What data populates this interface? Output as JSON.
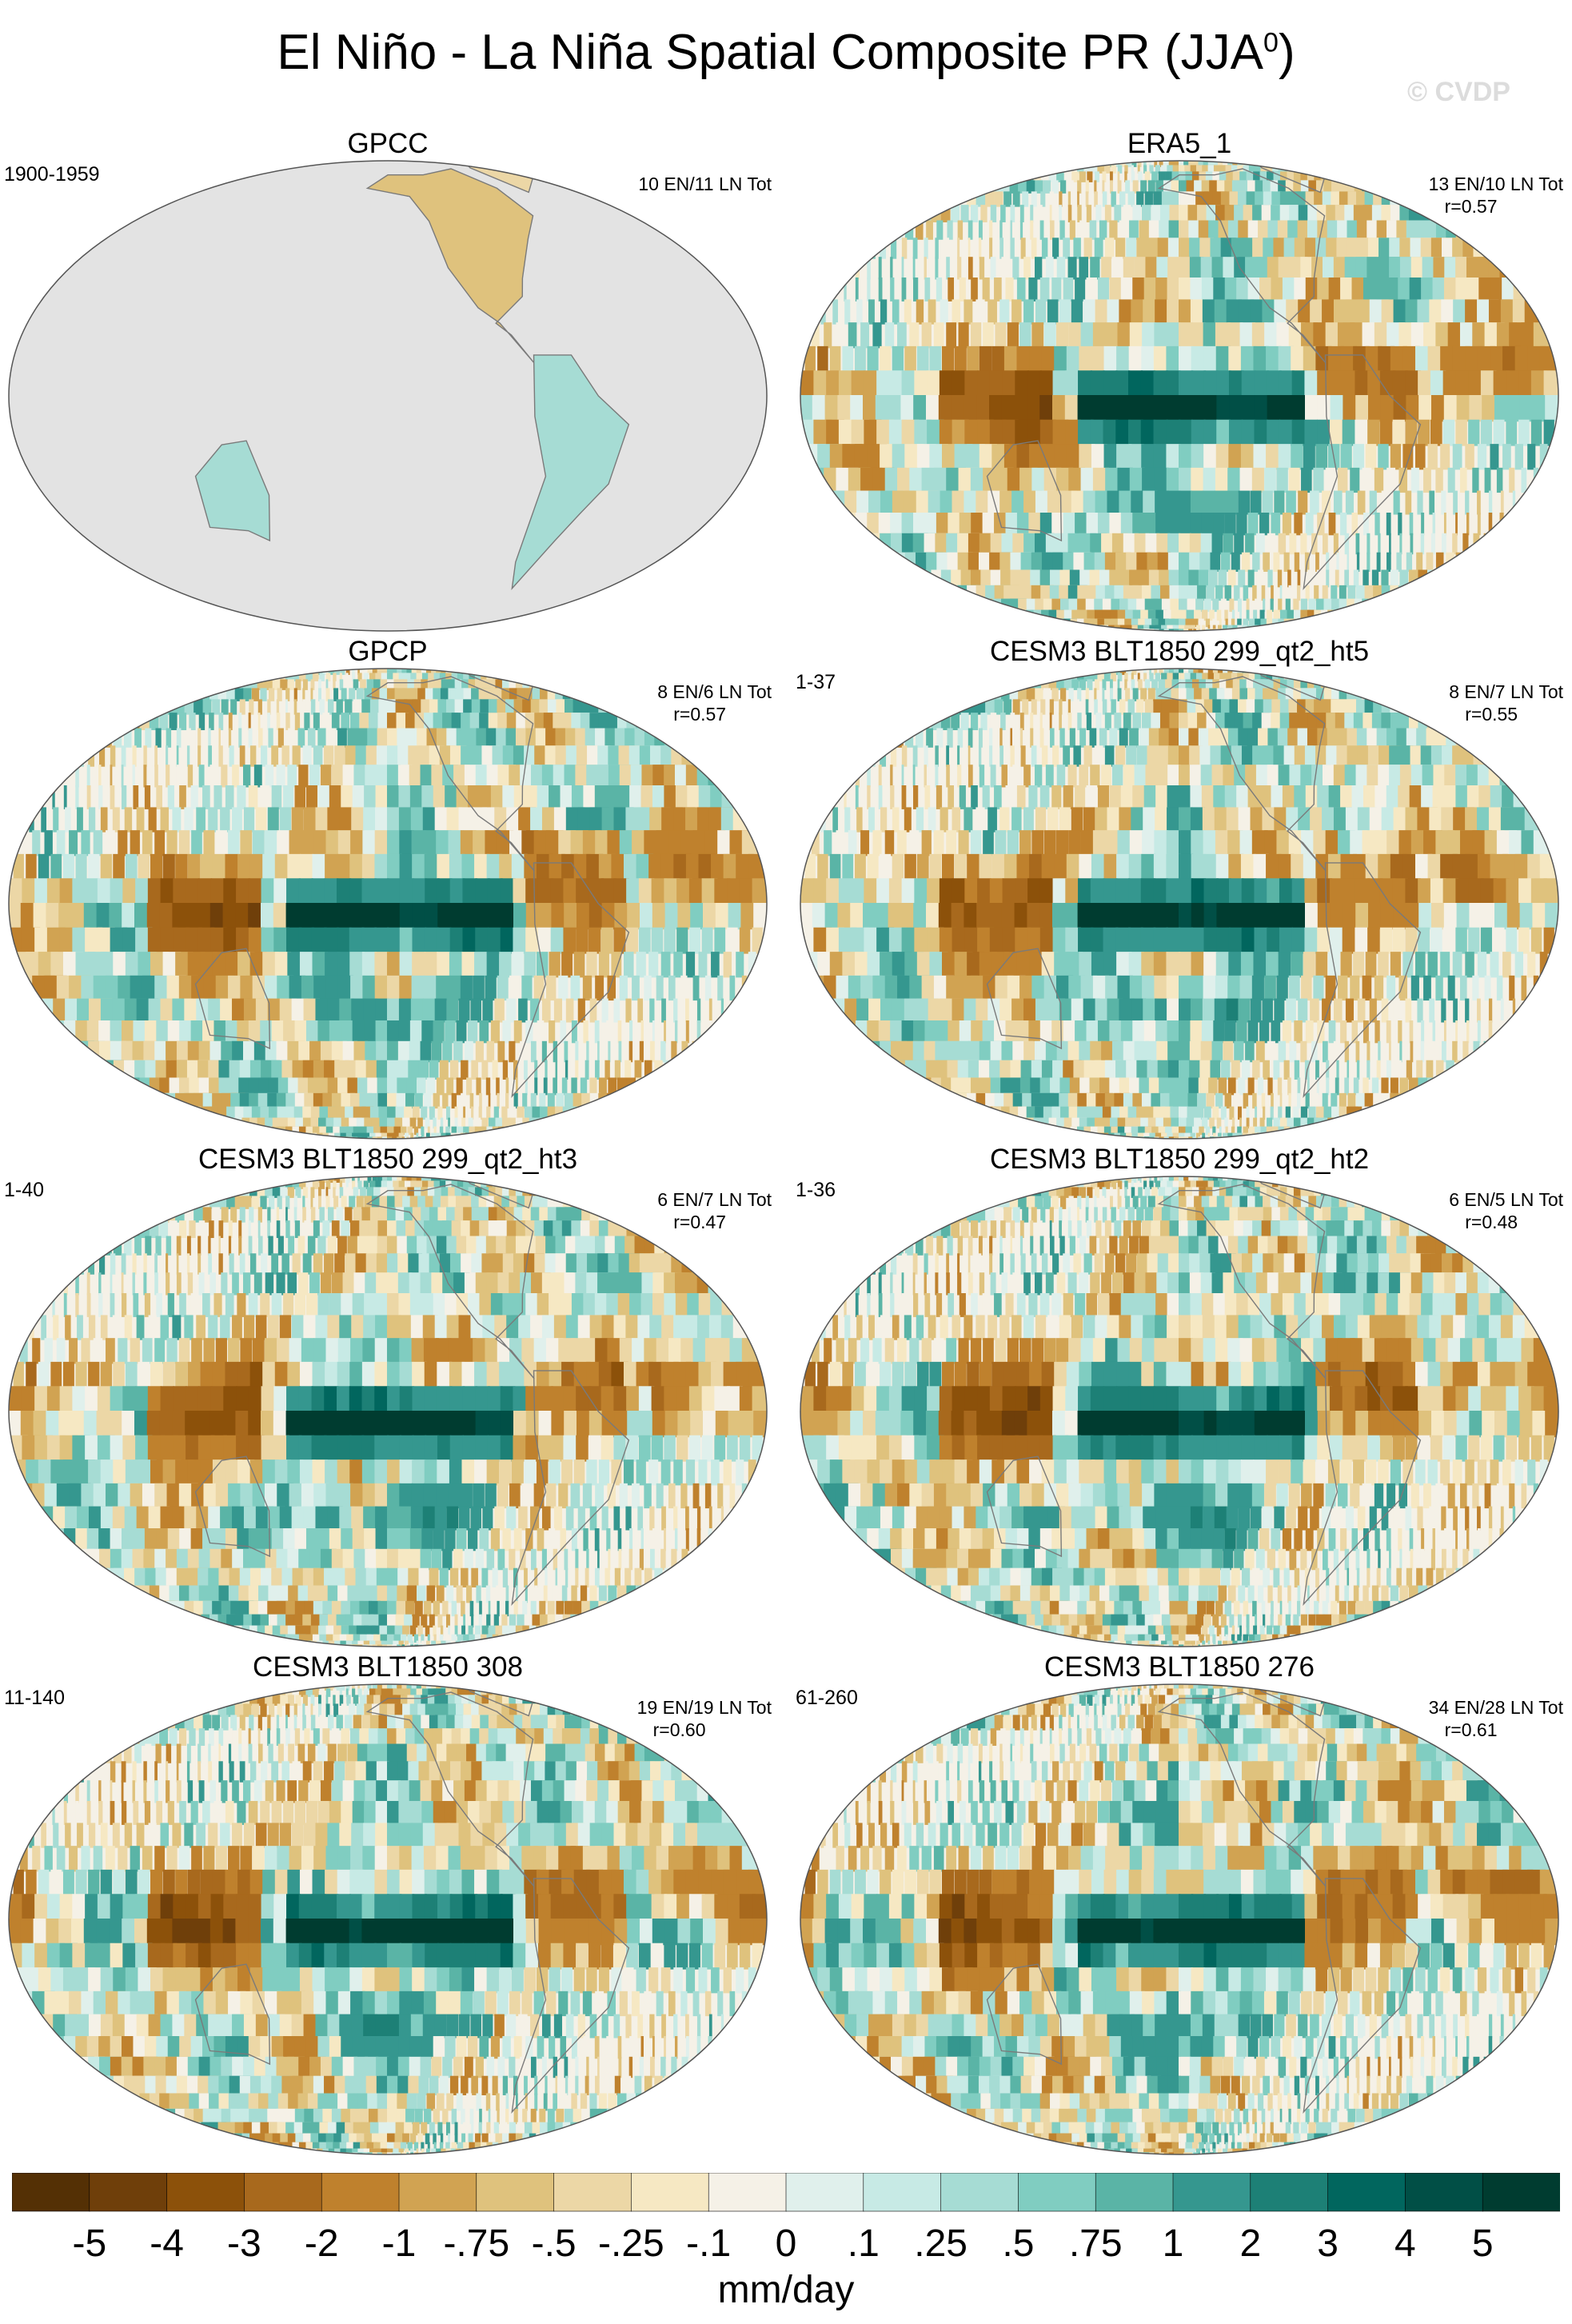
{
  "title": "El Niño - La Niña Spatial Composite PR (JJA",
  "title_sup": "0",
  "title_close": ")",
  "watermark": "© CVDP",
  "chart_data": {
    "type": "heatmap",
    "projection": "Robinson-style world map, Pacific centered",
    "units": "mm/day",
    "panels": [
      {
        "name": "GPCC",
        "years": "1900-1959",
        "counts": "10 EN/11 LN Tot",
        "r": "",
        "land_only": true
      },
      {
        "name": "ERA5_1",
        "years": "",
        "counts": "13 EN/10 LN Tot",
        "r": "r=0.57",
        "land_only": false
      },
      {
        "name": "GPCP",
        "years": "",
        "counts": "8 EN/6 LN Tot",
        "r": "r=0.57",
        "land_only": false
      },
      {
        "name": "CESM3 BLT1850 299_qt2_ht5",
        "years": "1-37",
        "counts": "8 EN/7 LN Tot",
        "r": "r=0.55",
        "land_only": false
      },
      {
        "name": "CESM3 BLT1850 299_qt2_ht3",
        "years": "1-40",
        "counts": "6 EN/7 LN Tot",
        "r": "r=0.47",
        "land_only": false
      },
      {
        "name": "CESM3 BLT1850 299_qt2_ht2",
        "years": "1-36",
        "counts": "6 EN/5 LN Tot",
        "r": "r=0.48",
        "land_only": false
      },
      {
        "name": "CESM3 BLT1850 308",
        "years": "11-140",
        "counts": "19 EN/19 LN Tot",
        "r": "r=0.60",
        "land_only": false
      },
      {
        "name": "CESM3 BLT1850 276",
        "years": "61-260",
        "counts": "34 EN/28 LN Tot",
        "r": "r=0.61",
        "land_only": false
      }
    ],
    "colorbar": {
      "labels": [
        "-5",
        "-4",
        "-3",
        "-2",
        "-1",
        "-.75",
        "-.5",
        "-.25",
        "-.1",
        "0",
        ".1",
        ".25",
        ".5",
        ".75",
        "1",
        "2",
        "3",
        "4",
        "5"
      ],
      "colors": [
        "#543005",
        "#6f3f0a",
        "#8c510a",
        "#a8691d",
        "#bf812d",
        "#d1a352",
        "#dfc27d",
        "#ecd7a6",
        "#f6e8c3",
        "#f5f1e7",
        "#e0f0ec",
        "#c7eae5",
        "#a6dcd4",
        "#80cdc1",
        "#5ab4a6",
        "#35978f",
        "#1d8076",
        "#01665e",
        "#014f46",
        "#003c30"
      ]
    },
    "colorbar_units": "mm/day"
  }
}
